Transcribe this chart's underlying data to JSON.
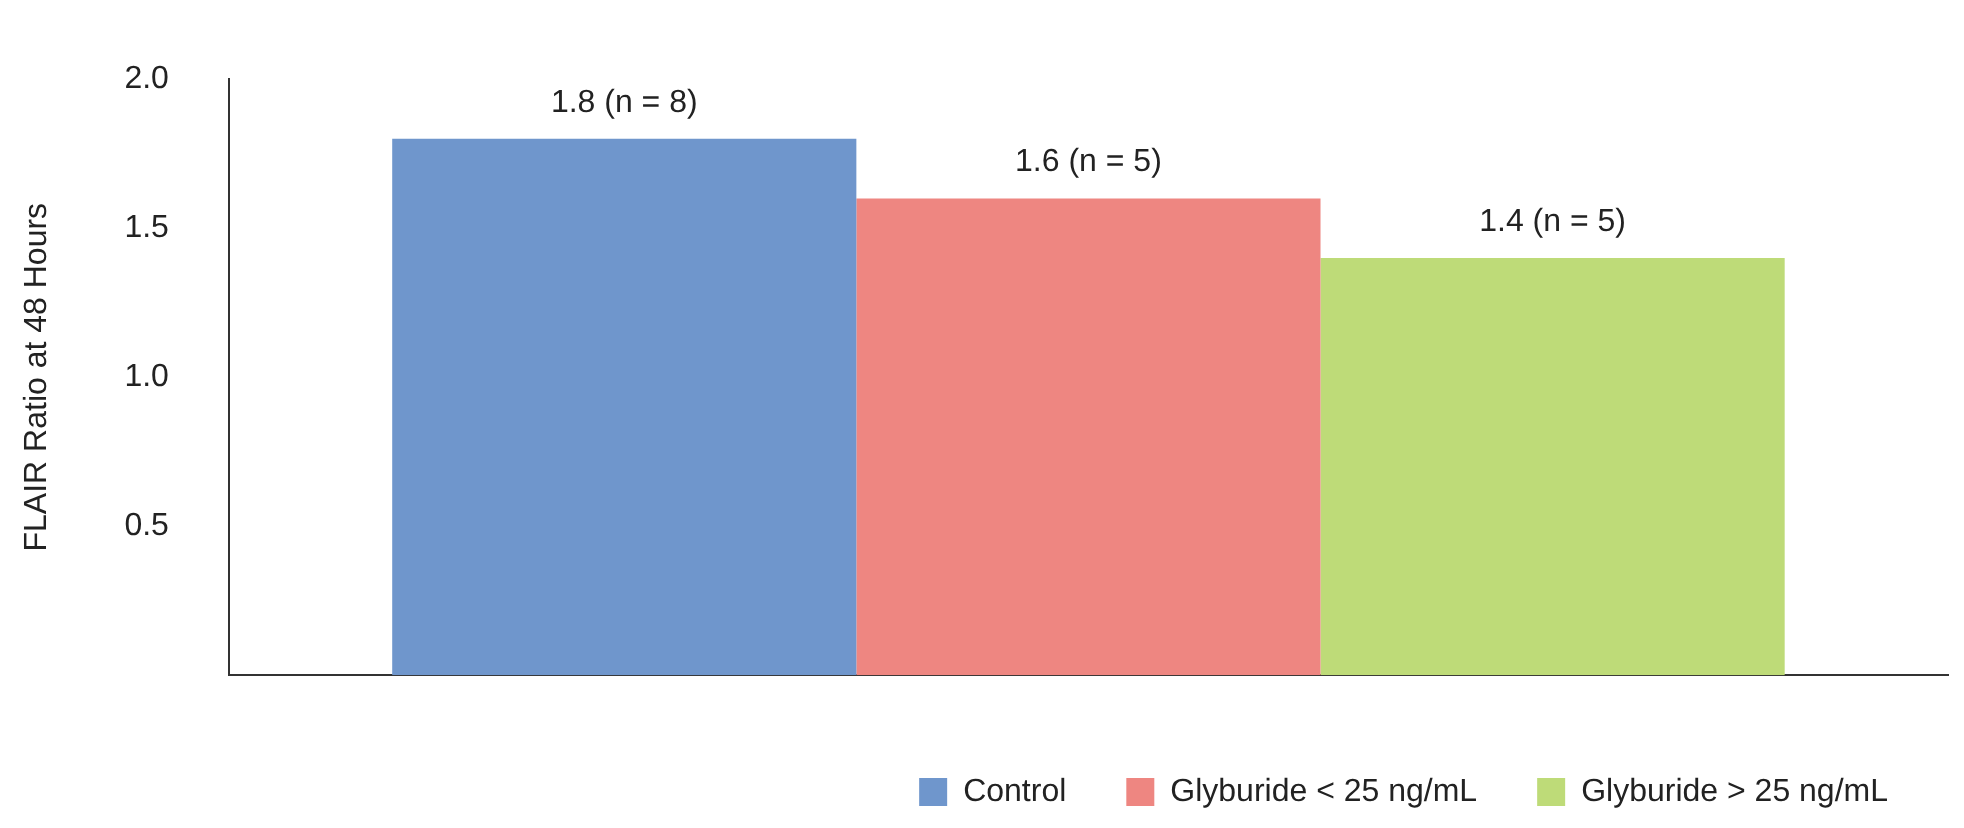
{
  "chart_data": {
    "type": "bar",
    "ylabel": "FLAIR Ratio at 48 Hours",
    "categories": [
      null
    ],
    "series": [
      {
        "name": "Control",
        "color": "#6f96cc",
        "values": [
          1.8
        ],
        "value_labels": [
          "1.8 (n = 8)"
        ]
      },
      {
        "name": "Glyburide < 25 ng/mL",
        "color": "#ee8681",
        "values": [
          1.6
        ],
        "value_labels": [
          "1.6 (n = 5)"
        ]
      },
      {
        "name": "Glyburide > 25 ng/mL",
        "color": "#bedb78",
        "values": [
          1.4
        ],
        "value_labels": [
          "1.4 (n = 5)"
        ]
      }
    ],
    "ylim": [
      0,
      2.0
    ],
    "yticks": [
      {
        "value": 0.5,
        "label": "0.5"
      },
      {
        "value": 1.0,
        "label": "1.0"
      },
      {
        "value": 1.5,
        "label": "1.5"
      },
      {
        "value": 2.0,
        "label": "2.0"
      }
    ],
    "grid": false,
    "legend": "bottom"
  }
}
